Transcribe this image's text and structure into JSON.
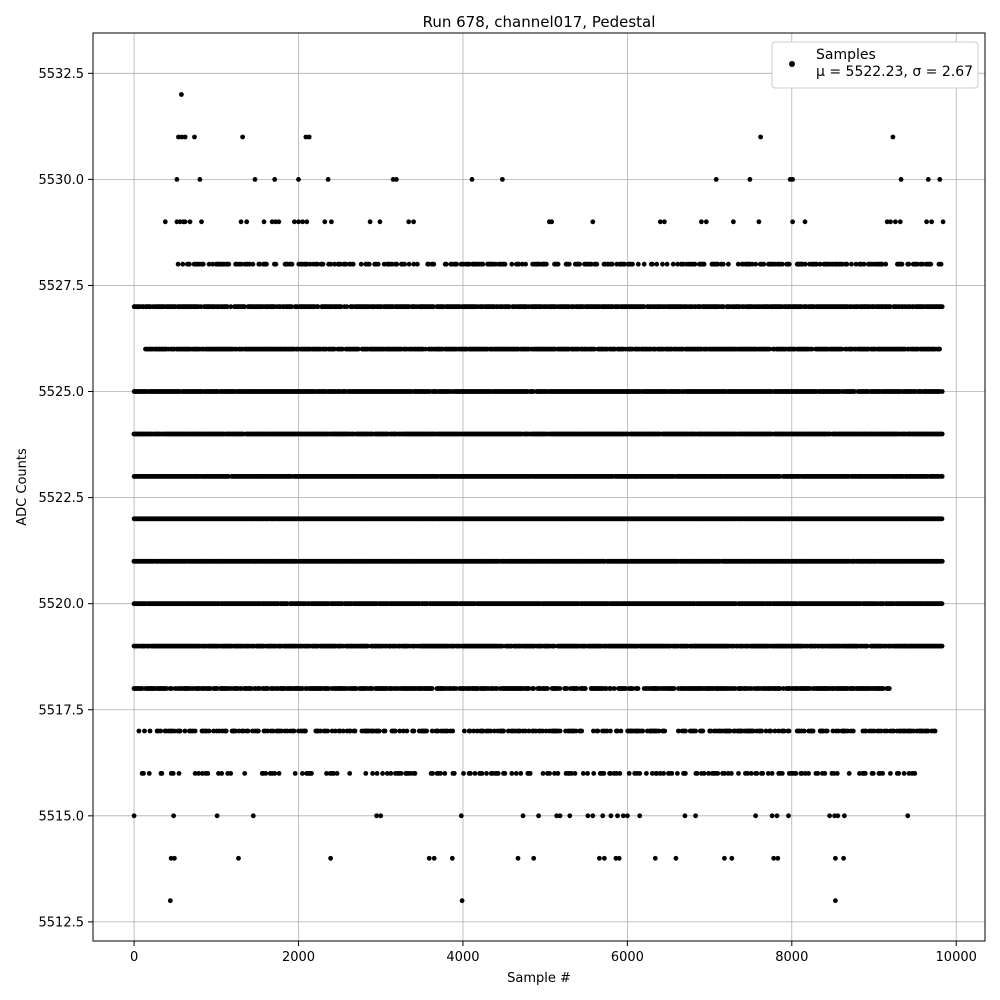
{
  "chart_data": {
    "type": "scatter",
    "title": "Run 678, channel017, Pedestal",
    "xlabel": "Sample #",
    "ylabel": "ADC Counts",
    "xlim": [
      -500,
      10350
    ],
    "ylim": [
      5512.05,
      5533.45
    ],
    "xticks": [
      0,
      2000,
      4000,
      6000,
      8000,
      10000
    ],
    "xtick_labels": [
      "0",
      "2000",
      "4000",
      "6000",
      "8000",
      "10000"
    ],
    "yticks": [
      5512.5,
      5515.0,
      5517.5,
      5520.0,
      5522.5,
      5525.0,
      5527.5,
      5530.0,
      5532.5
    ],
    "ytick_labels": [
      "5512.5",
      "5515.0",
      "5517.5",
      "5520.0",
      "5522.5",
      "5525.0",
      "5527.5",
      "5530.0",
      "5532.5"
    ],
    "grid": true,
    "legend_position": "top-right",
    "marker_color": "#000000",
    "series": [
      {
        "name": "Samples",
        "note": "μ = 5522.23, σ = 2.67",
        "x_range": [
          0,
          9830
        ],
        "levels": [
          {
            "y": 5532,
            "x": [
              575
            ]
          },
          {
            "y": 5531,
            "x": [
              540,
              580,
              620,
              735,
              1320,
              2090,
              2130,
              7620,
              9230
            ]
          },
          {
            "y": 5530,
            "x": [
              520,
              800,
              1470,
              1710,
              2000,
              2360,
              3150,
              3190,
              4110,
              4480,
              7080,
              7490,
              7980,
              8010,
              9330,
              9660,
              9800
            ]
          },
          {
            "y": 5529,
            "x": [
              380,
              520,
              560,
              600,
              620,
              680,
              820,
              1300,
              1370,
              1580,
              1680,
              1720,
              1760,
              1950,
              2000,
              2050,
              2100,
              2320,
              2400,
              2870,
              2990,
              3340,
              3400,
              5050,
              5080,
              5580,
              6400,
              6450,
              6900,
              6960,
              7290,
              7600,
              8010,
              8160,
              9160,
              9200,
              9260,
              9320,
              9640,
              9700,
              9840
            ]
          }
        ],
        "dense_levels": [
          {
            "y": 5528,
            "x_start": 520,
            "x_end": 9830,
            "density": 0.45
          },
          {
            "y": 5527,
            "x_start": 0,
            "x_end": 9830,
            "density": 0.85
          },
          {
            "y": 5526,
            "x_start": 140,
            "x_end": 9830,
            "density": 0.9
          },
          {
            "y": 5525,
            "x_start": 0,
            "x_end": 9830,
            "density": 0.95
          },
          {
            "y": 5524,
            "x_start": 0,
            "x_end": 9830,
            "density": 0.97
          },
          {
            "y": 5523,
            "x_start": 0,
            "x_end": 9830,
            "density": 0.98
          },
          {
            "y": 5522,
            "x_start": 0,
            "x_end": 9830,
            "density": 1.0
          },
          {
            "y": 5521,
            "x_start": 0,
            "x_end": 9830,
            "density": 0.98
          },
          {
            "y": 5520,
            "x_start": 0,
            "x_end": 9830,
            "density": 0.96
          },
          {
            "y": 5519,
            "x_start": 0,
            "x_end": 9830,
            "density": 0.9
          },
          {
            "y": 5518,
            "x_start": 0,
            "x_end": 9200,
            "density": 0.75
          },
          {
            "y": 5517,
            "x_start": 0,
            "x_end": 9750,
            "density": 0.45
          },
          {
            "y": 5516,
            "x_start": 100,
            "x_end": 9500,
            "density": 0.25
          }
        ],
        "sparse_levels": [
          {
            "y": 5515,
            "x": [
              0,
              480,
              1010,
              1450,
              2950,
              3000,
              3980,
              4730,
              4920,
              5140,
              5180,
              5300,
              5520,
              5580,
              5700,
              5800,
              5880,
              5950,
              6000,
              6150,
              6700,
              6830,
              7560,
              7760,
              7820,
              7960,
              8460,
              8520,
              8560,
              8640,
              9410
            ]
          },
          {
            "y": 5514,
            "x": [
              450,
              490,
              1270,
              2390,
              3590,
              3650,
              3870,
              4670,
              4860,
              5660,
              5720,
              5860,
              5900,
              6340,
              6590,
              7180,
              7270,
              7780,
              7830,
              8530,
              8630
            ]
          },
          {
            "y": 5513,
            "x": [
              440,
              3990,
              8530
            ]
          }
        ]
      }
    ]
  }
}
